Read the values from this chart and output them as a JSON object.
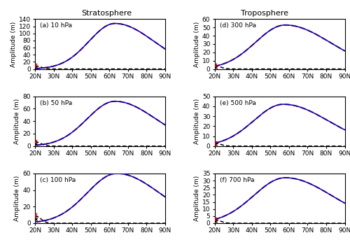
{
  "panels": [
    {
      "label": "(a) 10 hPa",
      "ylim": [
        0,
        140
      ],
      "yticks": [
        0,
        20,
        40,
        60,
        80,
        100,
        120,
        140
      ],
      "peak": 128,
      "peak_lat": 63,
      "rise_spread": 14,
      "fall_spread": 21,
      "rmsd_peak": 9,
      "rmsd_spread": 3
    },
    {
      "label": "(b) 50 hPa",
      "ylim": [
        0,
        80
      ],
      "yticks": [
        0,
        20,
        40,
        60,
        80
      ],
      "peak": 72,
      "peak_lat": 63,
      "rise_spread": 15,
      "fall_spread": 22,
      "rmsd_peak": 7,
      "rmsd_spread": 3
    },
    {
      "label": "(c) 100 hPa",
      "ylim": [
        0,
        60
      ],
      "yticks": [
        0,
        20,
        40,
        60
      ],
      "peak": 60,
      "peak_lat": 64,
      "rise_spread": 16,
      "fall_spread": 23,
      "rmsd_peak": 9,
      "rmsd_spread": 3
    },
    {
      "label": "(d) 300 hPa",
      "ylim": [
        0,
        60
      ],
      "yticks": [
        0,
        10,
        20,
        30,
        40,
        50,
        60
      ],
      "peak": 53,
      "peak_lat": 58,
      "rise_spread": 16,
      "fall_spread": 24,
      "rmsd_peak": 4,
      "rmsd_spread": 3
    },
    {
      "label": "(e) 500 hPa",
      "ylim": [
        0,
        50
      ],
      "yticks": [
        0,
        10,
        20,
        30,
        40,
        50
      ],
      "peak": 42,
      "peak_lat": 57,
      "rise_spread": 16,
      "fall_spread": 24,
      "rmsd_peak": 3,
      "rmsd_spread": 3
    },
    {
      "label": "(f) 700 hPa",
      "ylim": [
        0,
        35
      ],
      "yticks": [
        0,
        5,
        10,
        15,
        20,
        25,
        30,
        35
      ],
      "peak": 32,
      "peak_lat": 58,
      "rise_spread": 17,
      "fall_spread": 25,
      "rmsd_peak": 2.5,
      "rmsd_spread": 3
    }
  ],
  "col_titles": [
    "Stratosphere",
    "Troposphere"
  ],
  "xlabel_vals": [
    "20N",
    "30N",
    "40N",
    "50N",
    "60N",
    "70N",
    "80N",
    "90N"
  ],
  "xlim": [
    20,
    90
  ],
  "xticks": [
    20,
    30,
    40,
    50,
    60,
    70,
    80,
    90
  ],
  "ylabel": "Amplitude (m)",
  "blue_color": "#0000bb",
  "red_color": "#cc0000",
  "black_color": "#000000",
  "line_width": 1.1,
  "font_size": 6.5
}
